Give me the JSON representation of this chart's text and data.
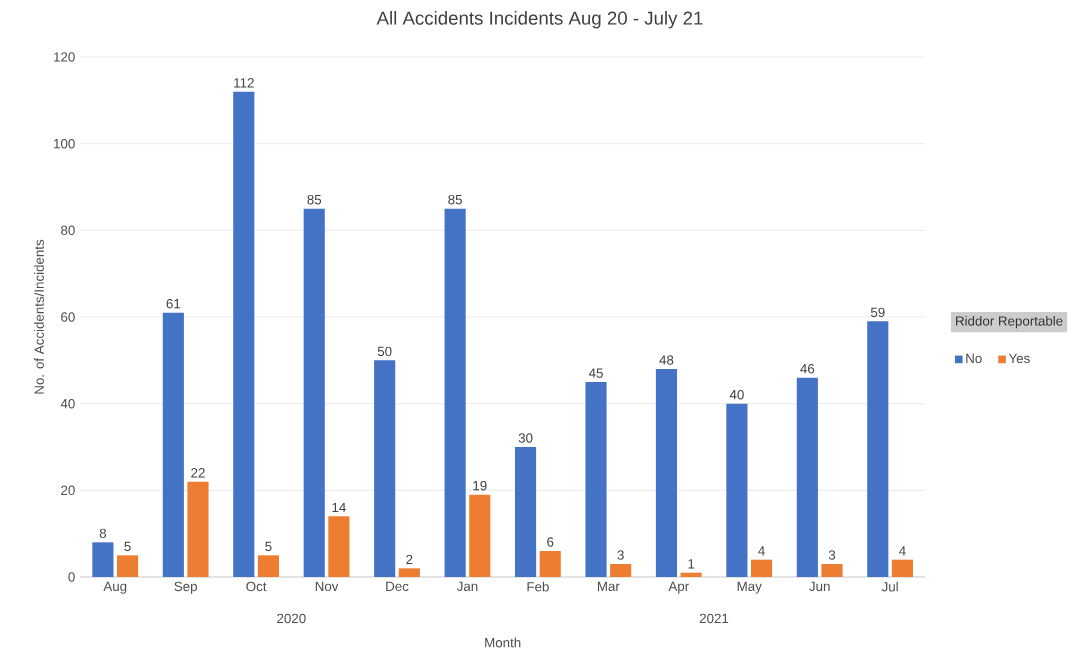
{
  "chart_data": {
    "type": "bar",
    "title": "All Accidents Incidents Aug 20 - July 21",
    "xlabel": "Month",
    "ylabel": "No. of Accidents/Incidents",
    "legend_title": "Riddor Reportable",
    "categories": [
      "Aug",
      "Sep",
      "Oct",
      "Nov",
      "Dec",
      "Jan",
      "Feb",
      "Mar",
      "Apr",
      "May",
      "Jun",
      "Jul"
    ],
    "series": [
      {
        "name": "No",
        "color": "#4472c4",
        "values": [
          8,
          61,
          112,
          85,
          50,
          85,
          30,
          45,
          48,
          40,
          46,
          59
        ]
      },
      {
        "name": "Yes",
        "color": "#ed7d31",
        "values": [
          5,
          22,
          5,
          14,
          2,
          19,
          6,
          3,
          1,
          4,
          3,
          4
        ]
      }
    ],
    "annotations": [
      "2020",
      "2021"
    ],
    "ylim": [
      0,
      120
    ],
    "yticks": [
      0,
      20,
      40,
      60,
      80,
      100,
      120
    ],
    "grid": "y",
    "legend": "right",
    "data_labels": true
  }
}
